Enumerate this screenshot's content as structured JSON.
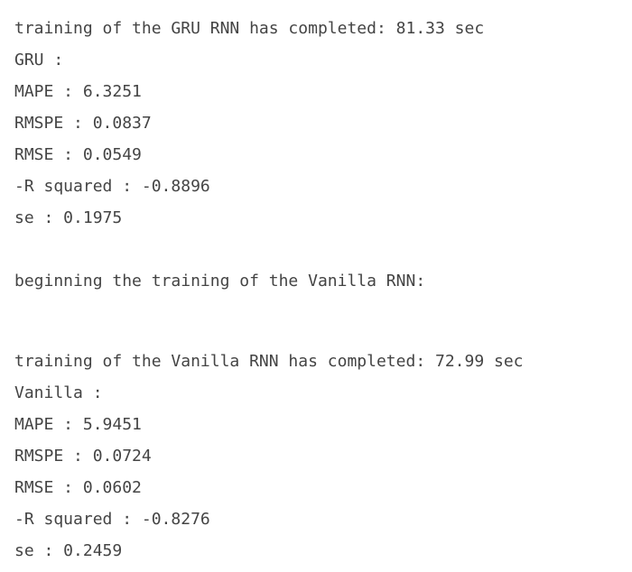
{
  "gru": {
    "completed_message": "training of the GRU RNN has completed: 81.33 sec",
    "header": "GRU :",
    "mape": "MAPE : 6.3251",
    "rmspe": "RMSPE : 0.0837",
    "rmse": "RMSE : 0.0549",
    "r_squared": "-R squared : -0.8896",
    "se": "se : 0.1975"
  },
  "vanilla": {
    "begin_message": "beginning the training of the Vanilla RNN:",
    "completed_message": "training of the Vanilla RNN has completed: 72.99 sec",
    "header": "Vanilla :",
    "mape": "MAPE : 5.9451",
    "rmspe": "RMSPE : 0.0724",
    "rmse": "RMSE : 0.0602",
    "r_squared": "-R squared : -0.8276",
    "se": "se : 0.2459"
  },
  "colors": {
    "text": "#444444",
    "background": "#ffffff"
  }
}
